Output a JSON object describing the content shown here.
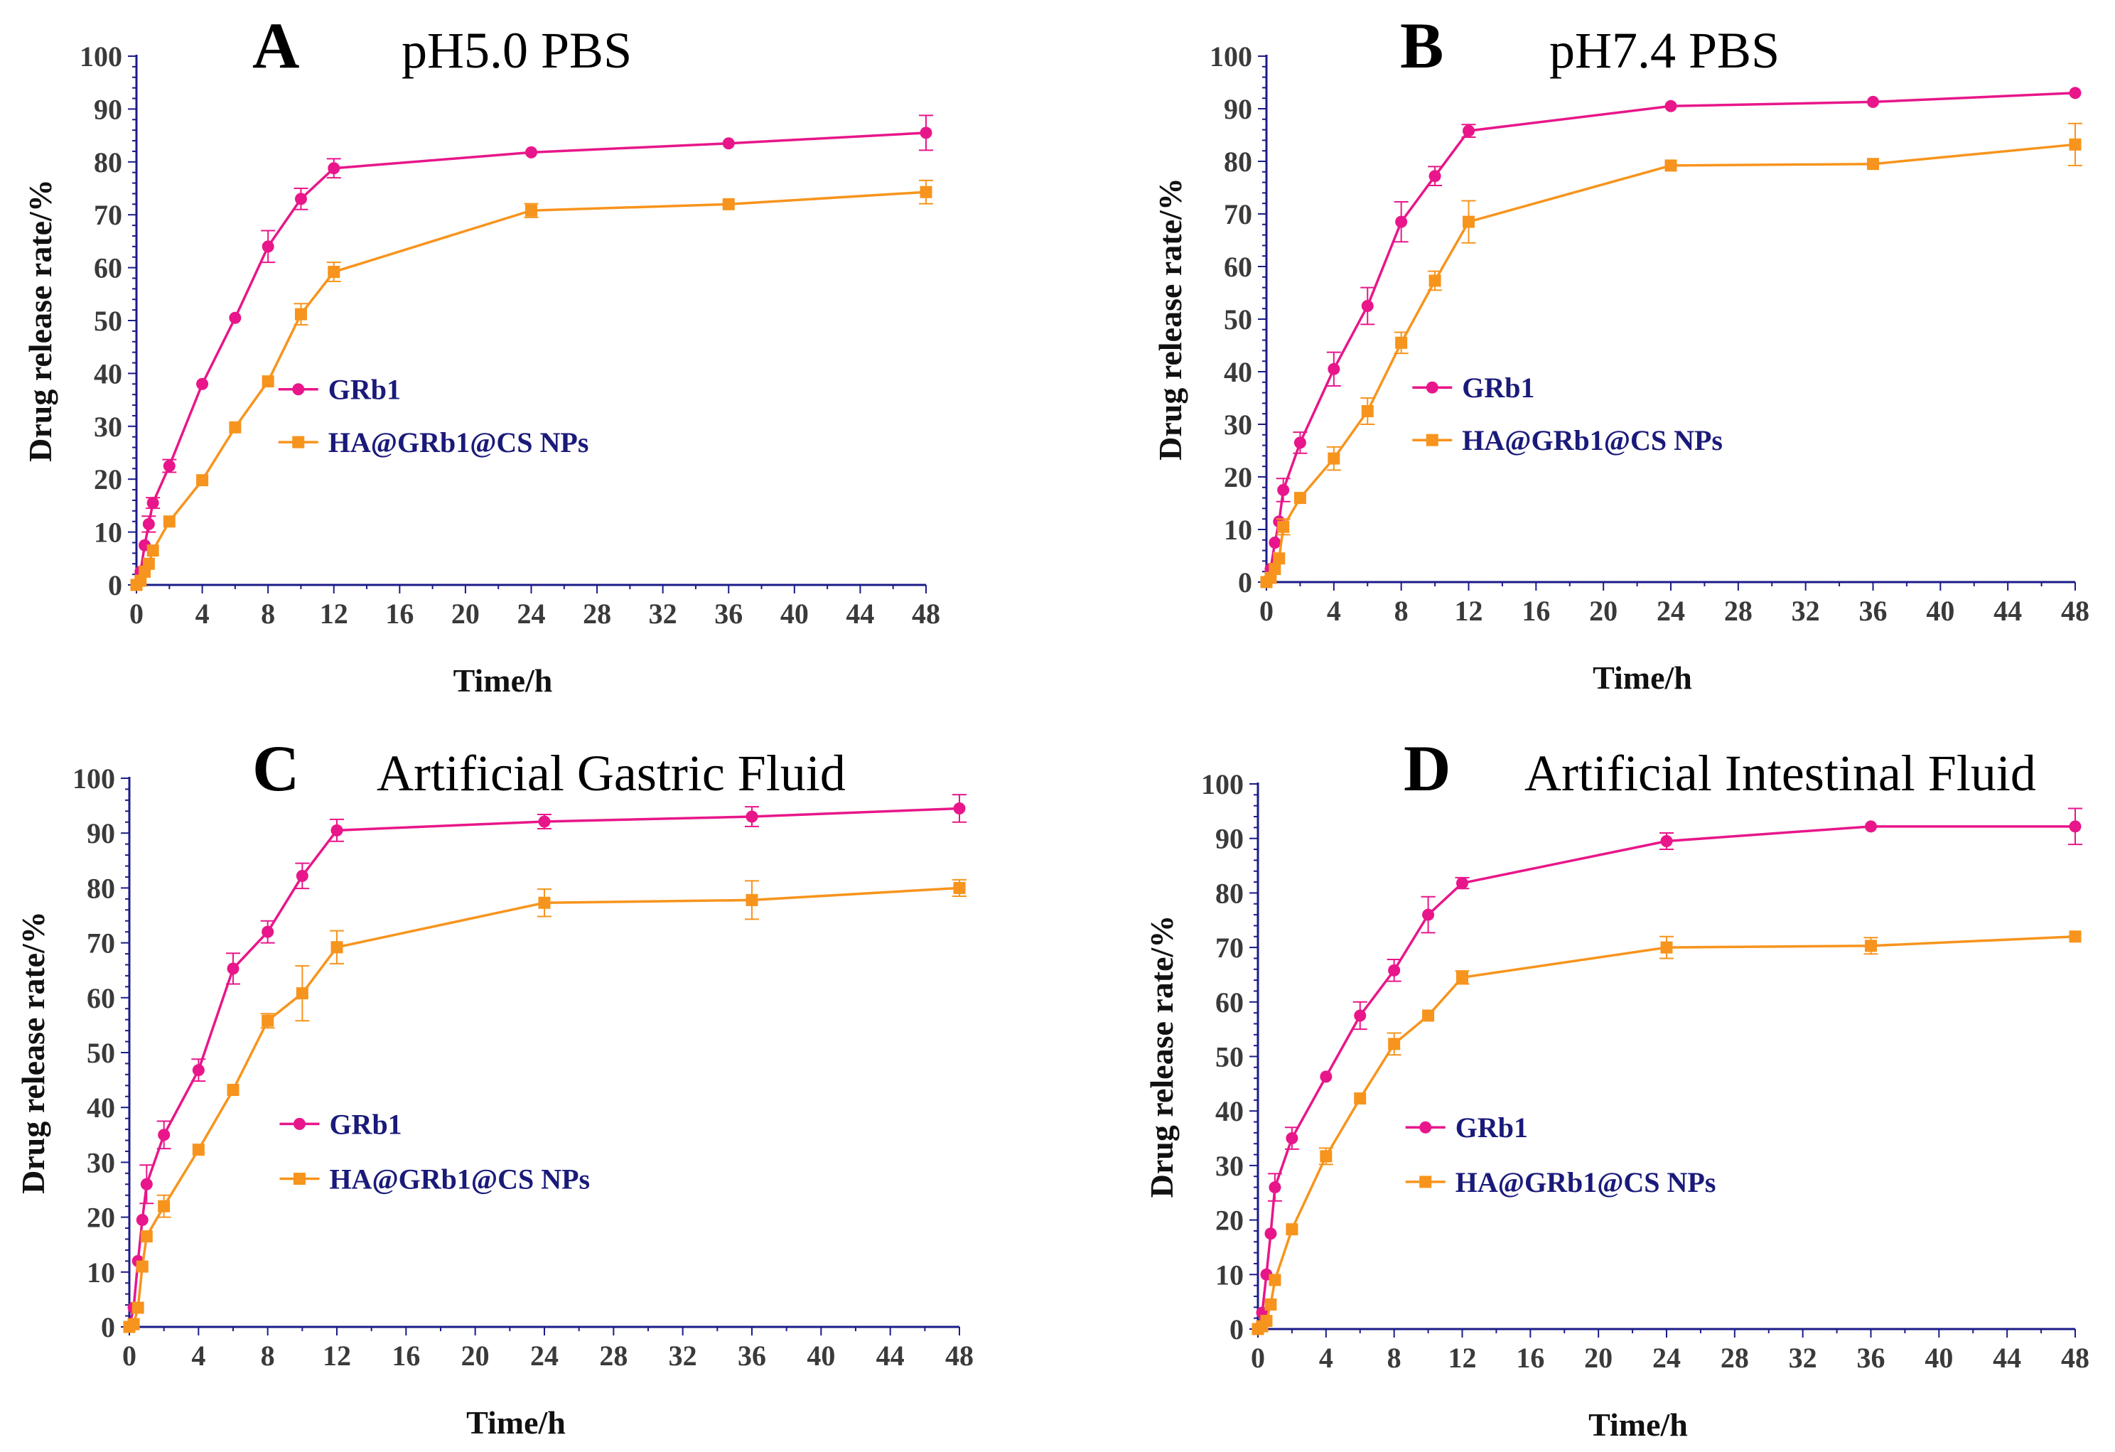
{
  "colors": {
    "GRb1": "#e8168a",
    "HA@GRb1@CS NPs": "#f7941d",
    "axis": "#1b1b8a",
    "legend_text": "#1a1a7a"
  },
  "chart_data": [
    {
      "type": "line",
      "panel": "A",
      "title": "pH5.0 PBS",
      "xlabel": "Time/h",
      "ylabel": "Drug release rate/%",
      "xlim": [
        0,
        48
      ],
      "ylim": [
        0,
        100
      ],
      "xticks": [
        "0",
        "4",
        "8",
        "12",
        "16",
        "20",
        "24",
        "28",
        "32",
        "36",
        "40",
        "44",
        "48"
      ],
      "yticks": [
        "0",
        "10",
        "20",
        "30",
        "40",
        "50",
        "60",
        "70",
        "80",
        "90",
        "100"
      ],
      "x": [
        0,
        0.25,
        0.5,
        0.75,
        1,
        2,
        4,
        6,
        8,
        10,
        12,
        24,
        36,
        48
      ],
      "series": [
        {
          "name": "GRb1",
          "values": [
            0,
            2.5,
            7.5,
            11.5,
            15.5,
            22.5,
            38,
            50.5,
            64,
            73,
            78.8,
            81.8,
            83.5,
            85.5
          ],
          "errors": [
            0,
            0,
            0,
            1.5,
            1,
            1.2,
            0,
            0,
            3,
            2,
            1.8,
            0,
            0,
            3.3
          ]
        },
        {
          "name": "HA@GRb1@CS NPs",
          "values": [
            0,
            0.8,
            2.5,
            4,
            6.5,
            12,
            19.8,
            29.8,
            38.5,
            51.2,
            59.2,
            70.8,
            72,
            74.3
          ],
          "errors": [
            0,
            0,
            0,
            0,
            0,
            0,
            0,
            0,
            0,
            2,
            1.8,
            1.3,
            0,
            2.2
          ]
        }
      ],
      "legend": "center-right"
    },
    {
      "type": "line",
      "panel": "B",
      "title": "pH7.4 PBS",
      "xlabel": "Time/h",
      "ylabel": "Drug release rate/%",
      "xlim": [
        0,
        48
      ],
      "ylim": [
        0,
        100
      ],
      "xticks": [
        "0",
        "4",
        "8",
        "12",
        "16",
        "20",
        "24",
        "28",
        "32",
        "36",
        "40",
        "44",
        "48"
      ],
      "yticks": [
        "0",
        "10",
        "20",
        "30",
        "40",
        "50",
        "60",
        "70",
        "80",
        "90",
        "100"
      ],
      "x": [
        0,
        0.25,
        0.5,
        0.75,
        1,
        2,
        4,
        6,
        8,
        10,
        12,
        24,
        36,
        48
      ],
      "series": [
        {
          "name": "GRb1",
          "values": [
            0,
            2.5,
            7.5,
            11.5,
            17.5,
            26.5,
            40.5,
            52.5,
            68.5,
            77.2,
            85.8,
            90.5,
            91.3,
            93
          ],
          "errors": [
            0,
            0,
            0,
            0,
            2.2,
            2,
            3.2,
            3.5,
            3.8,
            1.8,
            1.2,
            0,
            0,
            0
          ]
        },
        {
          "name": "HA@GRb1@CS NPs",
          "values": [
            0,
            0.8,
            2.5,
            4.5,
            10.5,
            16,
            23.5,
            32.5,
            45.5,
            57.3,
            68.5,
            79.2,
            79.5,
            83.2
          ],
          "errors": [
            0,
            0,
            0,
            0,
            1.5,
            0,
            2.2,
            2.5,
            2,
            1.8,
            4,
            0,
            0,
            4
          ]
        }
      ],
      "legend": "center-right"
    },
    {
      "type": "line",
      "panel": "C",
      "title": "Artificial Gastric Fluid",
      "xlabel": "Time/h",
      "ylabel": "Drug release rate/%",
      "xlim": [
        0,
        48
      ],
      "ylim": [
        0,
        100
      ],
      "xticks": [
        "0",
        "4",
        "8",
        "12",
        "16",
        "20",
        "24",
        "28",
        "32",
        "36",
        "40",
        "44",
        "48"
      ],
      "yticks": [
        "0",
        "10",
        "20",
        "30",
        "40",
        "50",
        "60",
        "70",
        "80",
        "90",
        "100"
      ],
      "x": [
        0,
        0.25,
        0.5,
        0.75,
        1,
        2,
        4,
        6,
        8,
        10,
        12,
        24,
        36,
        48
      ],
      "series": [
        {
          "name": "GRb1",
          "values": [
            0,
            3.5,
            12,
            19.5,
            26,
            35,
            46.8,
            65.3,
            72,
            82.2,
            90.5,
            92.1,
            93,
            94.5
          ],
          "errors": [
            0,
            0,
            0,
            0,
            3.5,
            2.5,
            2,
            2.8,
            2,
            2.3,
            2,
            1.3,
            1.8,
            2.5
          ]
        },
        {
          "name": "HA@GRb1@CS NPs",
          "values": [
            0,
            0.5,
            3.5,
            11,
            16.5,
            22,
            32.3,
            43.2,
            55.8,
            60.8,
            69.2,
            77.3,
            77.8,
            80
          ],
          "errors": [
            0,
            0,
            0,
            0,
            0,
            2,
            0,
            0,
            1.3,
            5,
            3,
            2.5,
            3.5,
            1.5
          ]
        }
      ],
      "legend": "center-right"
    },
    {
      "type": "line",
      "panel": "D",
      "title": "Artificial Intestinal Fluid",
      "xlabel": "Time/h",
      "ylabel": "Drug release rate/%",
      "xlim": [
        0,
        48
      ],
      "ylim": [
        0,
        100
      ],
      "xticks": [
        "0",
        "4",
        "8",
        "12",
        "16",
        "20",
        "24",
        "28",
        "32",
        "36",
        "40",
        "44",
        "48"
      ],
      "yticks": [
        "0",
        "10",
        "20",
        "30",
        "40",
        "50",
        "60",
        "70",
        "80",
        "90",
        "100"
      ],
      "x": [
        0,
        0.25,
        0.5,
        0.75,
        1,
        2,
        4,
        6,
        8,
        10,
        12,
        24,
        36,
        48
      ],
      "series": [
        {
          "name": "GRb1",
          "values": [
            0,
            3,
            10,
            17.5,
            26,
            35,
            46.3,
            57.5,
            65.8,
            76,
            81.8,
            89.5,
            92.2,
            92.2
          ],
          "errors": [
            0,
            0,
            0,
            0,
            2.5,
            2,
            0,
            2.5,
            2,
            3.3,
            1,
            1.5,
            0,
            3.3
          ]
        },
        {
          "name": "HA@GRb1@CS NPs",
          "values": [
            0,
            0.5,
            1.5,
            4.5,
            9,
            18.3,
            31.7,
            42.3,
            52.3,
            57.5,
            64.5,
            70,
            70.3,
            72
          ],
          "errors": [
            0,
            0,
            0,
            0,
            0,
            0,
            1.5,
            0,
            2,
            0,
            1.2,
            2,
            1.5,
            0
          ]
        }
      ],
      "legend": "center-right"
    }
  ]
}
